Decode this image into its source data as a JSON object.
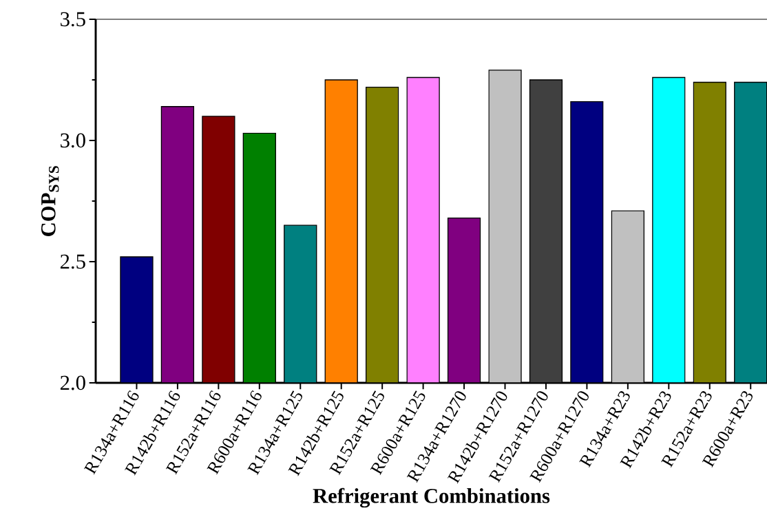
{
  "chart_data": {
    "type": "bar",
    "xlabel": "Refrigerant Combinations",
    "ylabel": "**COP$_{SYS}$**",
    "categories": [
      "R134a+R116",
      "R142b+R116",
      "R152a+R116",
      "R600a+R116",
      "R134a+R125",
      "R142b+R125",
      "R152a+R125",
      "R600a+R125",
      "R134a+R1270",
      "R142b+R1270",
      "R152a+R1270",
      "R600a+R1270",
      "R134a+R23",
      "R142b+R23",
      "R152a+R23",
      "R600a+R23"
    ],
    "values": [
      2.52,
      3.14,
      3.1,
      3.03,
      2.65,
      3.25,
      3.22,
      3.26,
      2.68,
      3.29,
      3.25,
      3.16,
      2.71,
      3.26,
      3.24,
      3.24
    ],
    "colors": [
      "#000080",
      "#800080",
      "#800000",
      "#008000",
      "#008080",
      "#ff8000",
      "#808000",
      "#ff80ff",
      "#800080",
      "#c0c0c0",
      "#404040",
      "#000080",
      "#c0c0c0",
      "#00ffff",
      "#808000",
      "#008080"
    ],
    "ylim": [
      2.0,
      3.5
    ],
    "yticks": [
      {
        "value": 2.0,
        "label": "2.0"
      },
      {
        "value": 2.5,
        "label": "2.5"
      },
      {
        "value": 3.0,
        "label": "3.0"
      },
      {
        "value": 3.5,
        "label": "3.5"
      }
    ],
    "grid": false
  }
}
